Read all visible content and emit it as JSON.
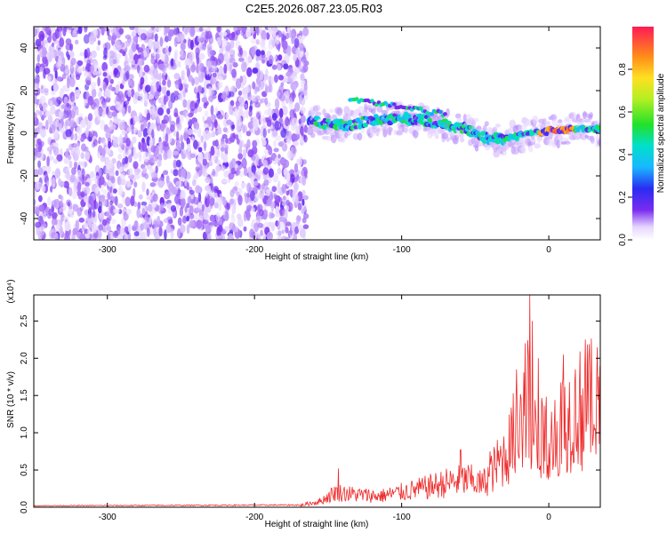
{
  "title": "C2E5.2026.087.23.05.R03",
  "chart_data": [
    {
      "type": "heatmap",
      "xlabel": "Height of straight line (km)",
      "ylabel": "Frequency (Hz)",
      "xlim": [
        -350,
        35
      ],
      "ylim": [
        -50,
        50
      ],
      "xticks": [
        -300,
        -200,
        -100,
        0
      ],
      "yticks": [
        -40,
        -20,
        0,
        20,
        40
      ],
      "colorbar": {
        "label": "Normalized spectral amplitude",
        "range": [
          0,
          1
        ],
        "ticks": [
          0.0,
          0.2,
          0.4,
          0.6,
          0.8
        ],
        "tick_labels": [
          "0.0",
          "0.2",
          "0.4",
          "0.6",
          "0.8"
        ]
      },
      "features": {
        "noise_region_x": [
          -350,
          -165
        ],
        "empty_region_x": [
          -165,
          35
        ],
        "main_trace": [
          {
            "x": -163,
            "y": 6
          },
          {
            "x": -150,
            "y": 4
          },
          {
            "x": -135,
            "y": 4
          },
          {
            "x": -120,
            "y": 6
          },
          {
            "x": -100,
            "y": 7
          },
          {
            "x": -85,
            "y": 6
          },
          {
            "x": -70,
            "y": 4
          },
          {
            "x": -55,
            "y": 2
          },
          {
            "x": -45,
            "y": -2
          },
          {
            "x": -35,
            "y": -3
          },
          {
            "x": -25,
            "y": -2
          },
          {
            "x": -10,
            "y": 0
          },
          {
            "x": 0,
            "y": 1
          },
          {
            "x": 15,
            "y": 2
          },
          {
            "x": 35,
            "y": 2
          }
        ],
        "upper_branch": [
          {
            "x": -135,
            "y": 16
          },
          {
            "x": -115,
            "y": 14
          },
          {
            "x": -95,
            "y": 12
          },
          {
            "x": -80,
            "y": 10
          },
          {
            "x": -70,
            "y": 9
          }
        ],
        "peak_x": 5
      }
    },
    {
      "type": "line",
      "xlabel": "Height of straight line (km)",
      "ylabel": "SNR (10 * v/v)",
      "y_multiplier": "(x10⁴)",
      "xlim": [
        -350,
        35
      ],
      "ylim": [
        0,
        2.85
      ],
      "xticks": [
        -300,
        -200,
        -100,
        0
      ],
      "yticks": [
        0.0,
        0.5,
        1.0,
        1.5,
        2.0,
        2.5
      ],
      "ytick_labels": [
        "0.0",
        "0.5",
        "1.0",
        "1.5",
        "2.0",
        "2.5"
      ],
      "series": [
        {
          "color": "#ee2a2a",
          "envelope": [
            {
              "x": -350,
              "y": 0.02
            },
            {
              "x": -170,
              "y": 0.03
            },
            {
              "x": -155,
              "y": 0.12
            },
            {
              "x": -145,
              "y": 0.3
            },
            {
              "x": -130,
              "y": 0.25
            },
            {
              "x": -115,
              "y": 0.22
            },
            {
              "x": -100,
              "y": 0.3
            },
            {
              "x": -85,
              "y": 0.38
            },
            {
              "x": -70,
              "y": 0.48
            },
            {
              "x": -55,
              "y": 0.55
            },
            {
              "x": -45,
              "y": 0.45
            },
            {
              "x": -35,
              "y": 0.85
            },
            {
              "x": -28,
              "y": 1.1
            },
            {
              "x": -22,
              "y": 1.6
            },
            {
              "x": -18,
              "y": 1.8
            },
            {
              "x": -14,
              "y": 2.1
            },
            {
              "x": -10,
              "y": 1.4
            },
            {
              "x": -5,
              "y": 1.35
            },
            {
              "x": 0,
              "y": 1.55
            },
            {
              "x": 10,
              "y": 1.7
            },
            {
              "x": 20,
              "y": 1.95
            },
            {
              "x": 35,
              "y": 2.15
            }
          ],
          "spikes": [
            {
              "x": -143,
              "y": 0.52
            },
            {
              "x": -60,
              "y": 0.77
            },
            {
              "x": -40,
              "y": 0.75
            },
            {
              "x": -22,
              "y": 1.85
            },
            {
              "x": -16,
              "y": 2.2
            },
            {
              "x": -13,
              "y": 2.85
            },
            {
              "x": -11,
              "y": 2.5
            },
            {
              "x": -7,
              "y": 2.0
            },
            {
              "x": 10,
              "y": 2.05
            },
            {
              "x": 25,
              "y": 2.25
            }
          ]
        }
      ]
    }
  ]
}
